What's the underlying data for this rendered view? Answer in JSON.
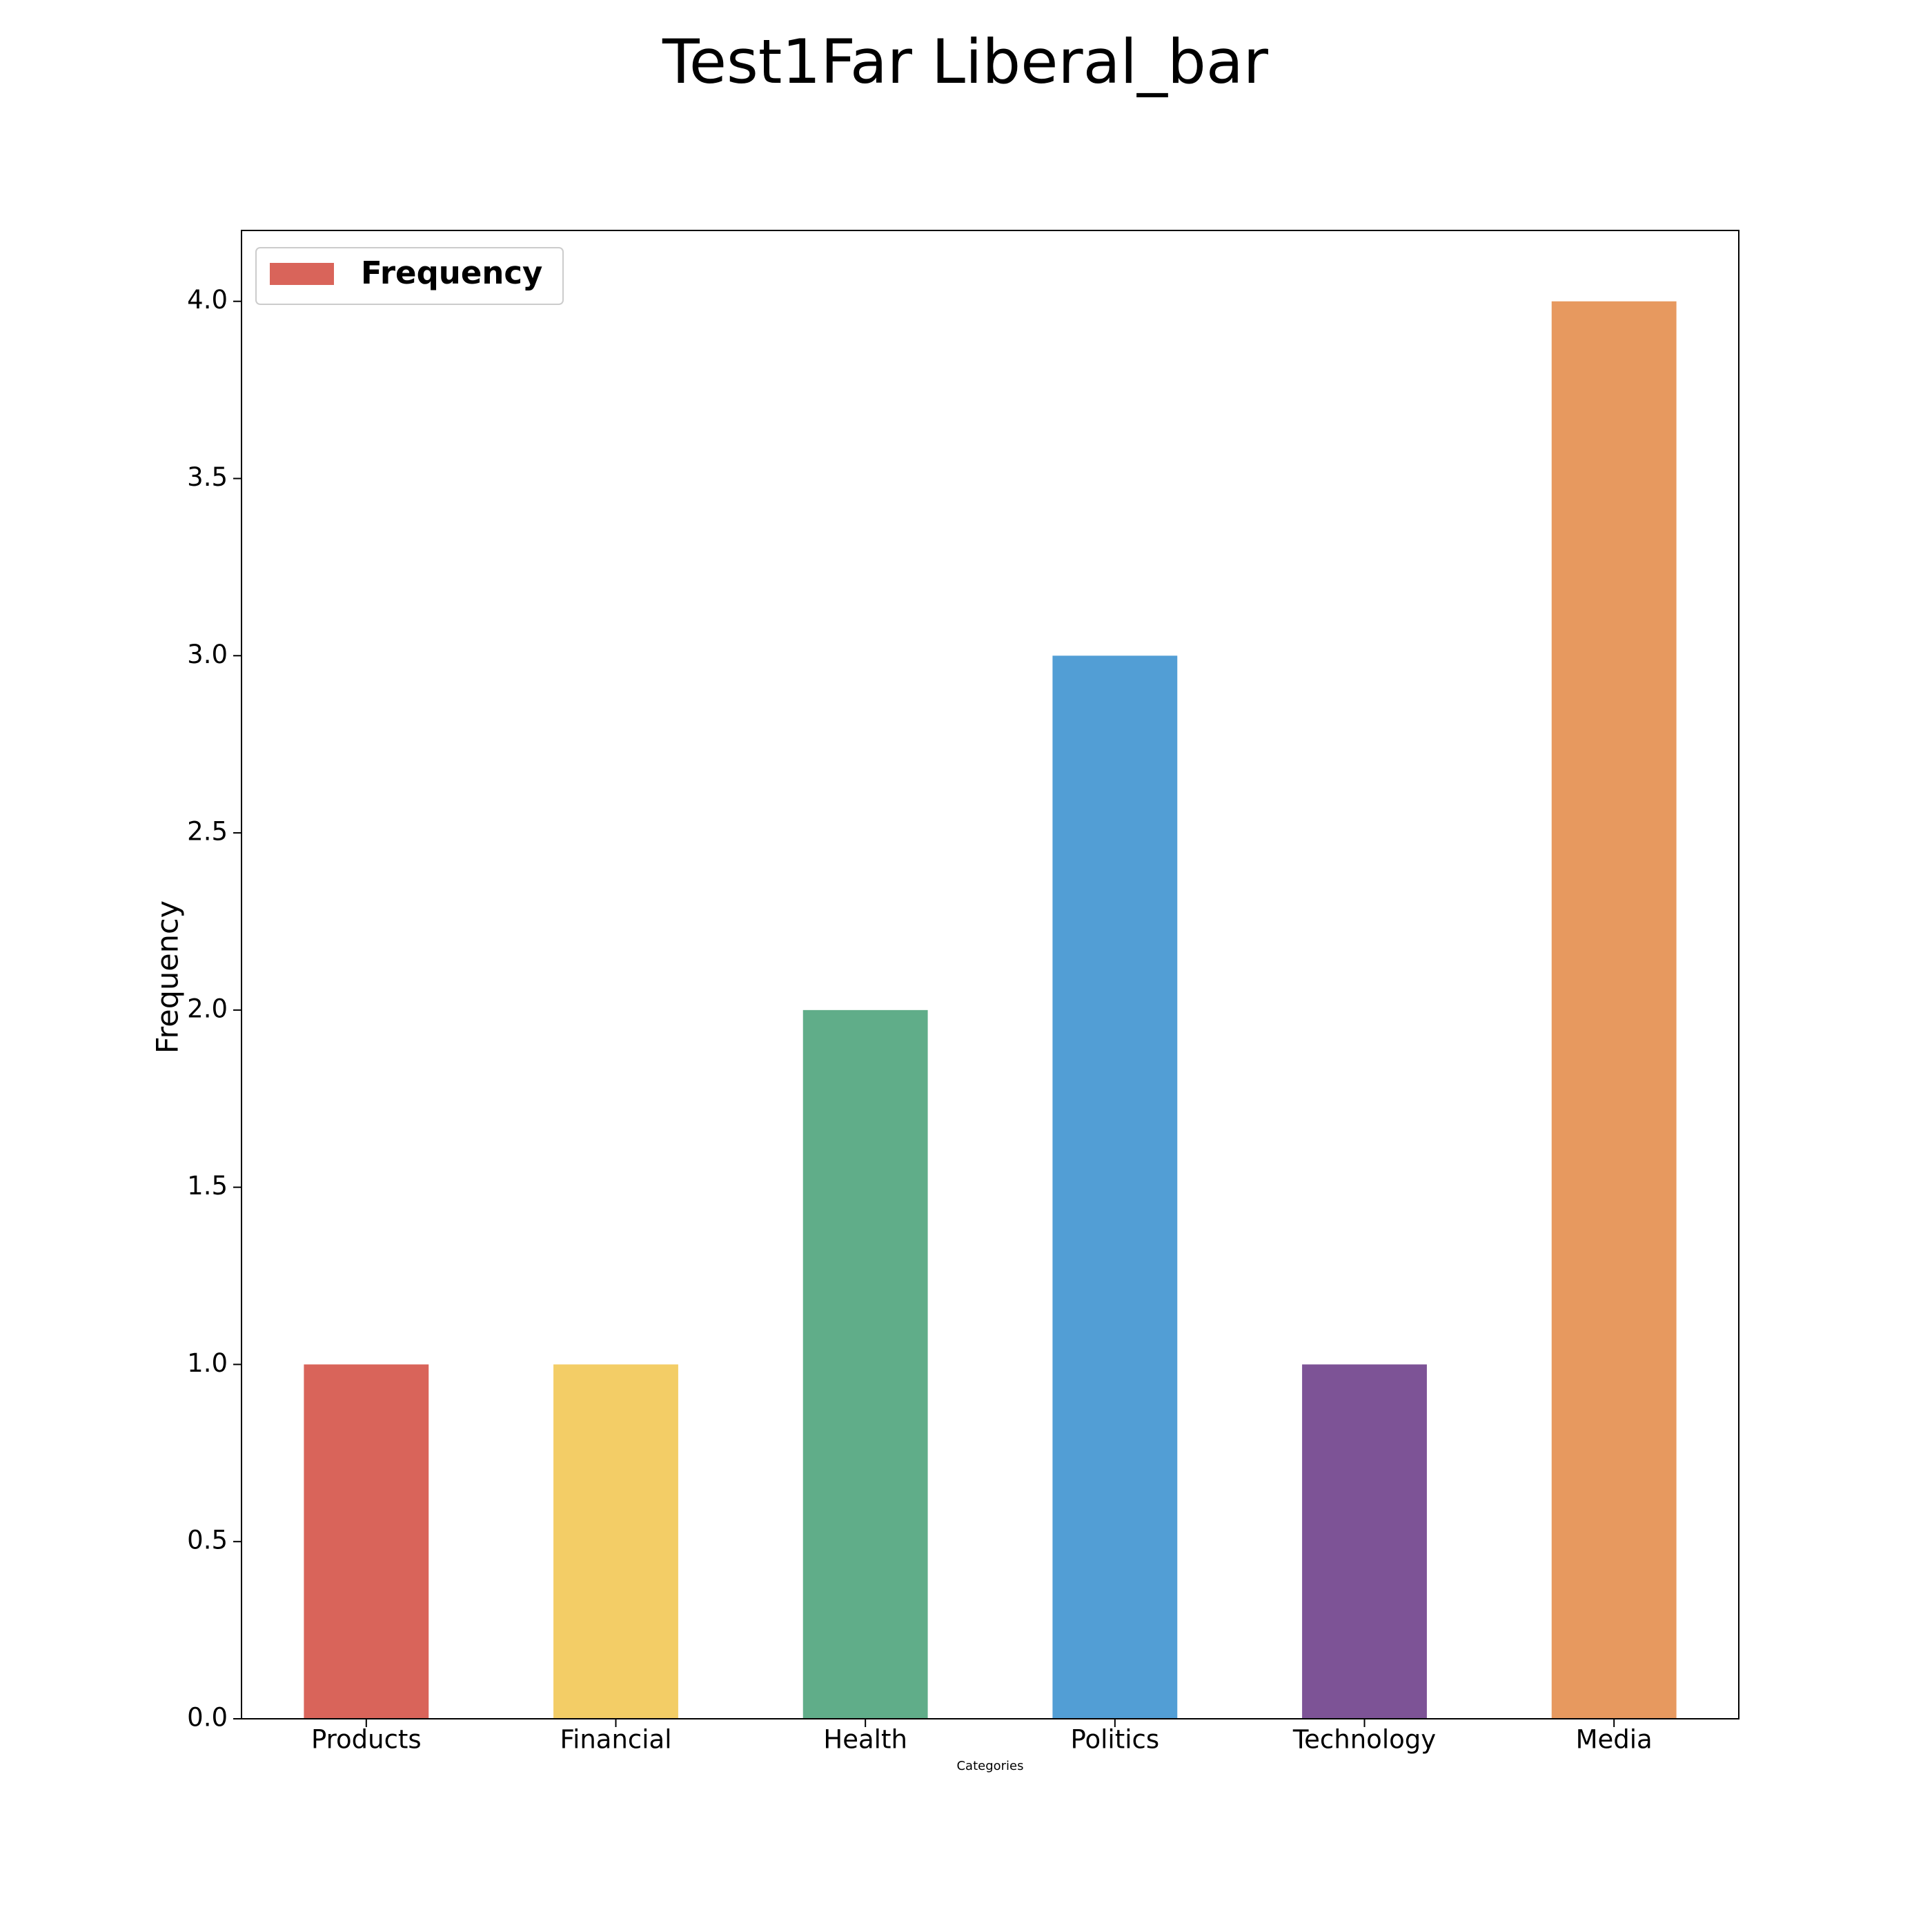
{
  "chart_data": {
    "type": "bar",
    "title": "Test1Far Liberal_bar",
    "x_label": "Categories",
    "y_label": "Frequency",
    "categories": [
      "Products",
      "Financial",
      "Health",
      "Politics",
      "Technology",
      "Media"
    ],
    "series": [
      {
        "name": "Frequency",
        "colors": [
          "#d9645a",
          "#f3cd66",
          "#60ad89",
          "#529ed5",
          "#7d5396",
          "#e7995f"
        ],
        "values": [
          1,
          1,
          2,
          3,
          1,
          4
        ]
      }
    ],
    "ylim": [
      0,
      4.2
    ],
    "yticks": [
      {
        "value": 0,
        "label": "0.0"
      },
      {
        "value": 0.5,
        "label": "0.5"
      },
      {
        "value": 1,
        "label": "1.0"
      },
      {
        "value": 1.5,
        "label": "1.5"
      },
      {
        "value": 2,
        "label": "2.0"
      },
      {
        "value": 2.5,
        "label": "2.5"
      },
      {
        "value": 3,
        "label": "3.0"
      },
      {
        "value": 3.5,
        "label": "3.5"
      },
      {
        "value": 4,
        "label": "4.0"
      }
    ],
    "legend": "upper left",
    "grid": false
  }
}
